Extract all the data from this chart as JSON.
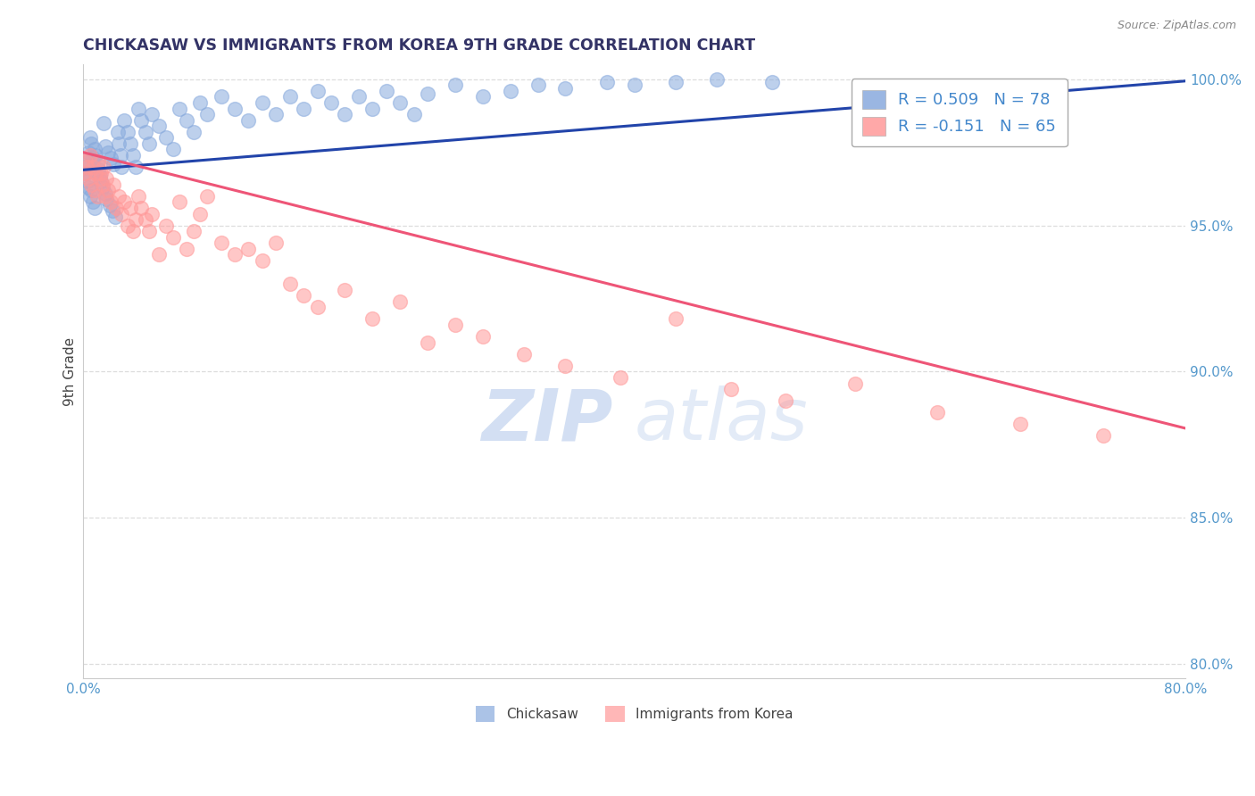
{
  "title": "CHICKASAW VS IMMIGRANTS FROM KOREA 9TH GRADE CORRELATION CHART",
  "source_text": "Source: ZipAtlas.com",
  "ylabel": "9th Grade",
  "xlim": [
    0.0,
    0.8
  ],
  "ylim": [
    0.795,
    1.005
  ],
  "xticks": [
    0.0,
    0.1,
    0.2,
    0.3,
    0.4,
    0.5,
    0.6,
    0.7,
    0.8
  ],
  "xticklabels": [
    "0.0%",
    "",
    "",
    "",
    "",
    "",
    "",
    "",
    "80.0%"
  ],
  "yticks": [
    0.8,
    0.85,
    0.9,
    0.95,
    1.0
  ],
  "yticklabels": [
    "80.0%",
    "85.0%",
    "90.0%",
    "95.0%",
    "100.0%"
  ],
  "legend1_R": "0.509",
  "legend1_N": "78",
  "legend2_R": "-0.151",
  "legend2_N": "65",
  "blue_color": "#88AADD",
  "pink_color": "#FF9999",
  "blue_line_color": "#2244AA",
  "pink_line_color": "#EE5577",
  "legend_text_color": "#4488CC",
  "title_color": "#333366",
  "tick_color": "#5599CC",
  "grid_color": "#DDDDDD",
  "blue_line_intercept": 0.969,
  "blue_line_slope": 0.038,
  "pink_line_intercept": 0.975,
  "pink_line_slope": -0.118,
  "chickasaw_x": [
    0.001,
    0.002,
    0.003,
    0.003,
    0.004,
    0.004,
    0.005,
    0.005,
    0.006,
    0.006,
    0.007,
    0.007,
    0.008,
    0.008,
    0.009,
    0.01,
    0.011,
    0.012,
    0.013,
    0.014,
    0.015,
    0.016,
    0.016,
    0.017,
    0.018,
    0.019,
    0.02,
    0.021,
    0.022,
    0.023,
    0.025,
    0.026,
    0.027,
    0.028,
    0.03,
    0.032,
    0.034,
    0.036,
    0.038,
    0.04,
    0.042,
    0.045,
    0.048,
    0.05,
    0.055,
    0.06,
    0.065,
    0.07,
    0.075,
    0.08,
    0.085,
    0.09,
    0.1,
    0.11,
    0.12,
    0.13,
    0.14,
    0.15,
    0.16,
    0.17,
    0.18,
    0.19,
    0.2,
    0.21,
    0.22,
    0.23,
    0.24,
    0.25,
    0.27,
    0.29,
    0.31,
    0.33,
    0.35,
    0.38,
    0.4,
    0.43,
    0.46,
    0.5
  ],
  "chickasaw_y": [
    0.97,
    0.968,
    0.972,
    0.965,
    0.975,
    0.963,
    0.98,
    0.96,
    0.978,
    0.962,
    0.973,
    0.958,
    0.976,
    0.956,
    0.974,
    0.971,
    0.969,
    0.967,
    0.965,
    0.963,
    0.985,
    0.961,
    0.977,
    0.959,
    0.975,
    0.957,
    0.973,
    0.955,
    0.971,
    0.953,
    0.982,
    0.978,
    0.974,
    0.97,
    0.986,
    0.982,
    0.978,
    0.974,
    0.97,
    0.99,
    0.986,
    0.982,
    0.978,
    0.988,
    0.984,
    0.98,
    0.976,
    0.99,
    0.986,
    0.982,
    0.992,
    0.988,
    0.994,
    0.99,
    0.986,
    0.992,
    0.988,
    0.994,
    0.99,
    0.996,
    0.992,
    0.988,
    0.994,
    0.99,
    0.996,
    0.992,
    0.988,
    0.995,
    0.998,
    0.994,
    0.996,
    0.998,
    0.997,
    0.999,
    0.998,
    0.999,
    1.0,
    0.999
  ],
  "korea_x": [
    0.001,
    0.002,
    0.003,
    0.004,
    0.005,
    0.006,
    0.007,
    0.008,
    0.009,
    0.01,
    0.011,
    0.012,
    0.013,
    0.014,
    0.015,
    0.016,
    0.017,
    0.018,
    0.02,
    0.022,
    0.024,
    0.026,
    0.028,
    0.03,
    0.032,
    0.034,
    0.036,
    0.038,
    0.04,
    0.042,
    0.045,
    0.048,
    0.05,
    0.055,
    0.06,
    0.065,
    0.07,
    0.075,
    0.08,
    0.085,
    0.09,
    0.1,
    0.11,
    0.12,
    0.13,
    0.14,
    0.15,
    0.16,
    0.17,
    0.19,
    0.21,
    0.23,
    0.25,
    0.27,
    0.29,
    0.32,
    0.35,
    0.39,
    0.43,
    0.47,
    0.51,
    0.56,
    0.62,
    0.68,
    0.74
  ],
  "korea_y": [
    0.968,
    0.972,
    0.97,
    0.966,
    0.974,
    0.964,
    0.97,
    0.962,
    0.968,
    0.96,
    0.972,
    0.966,
    0.968,
    0.964,
    0.97,
    0.96,
    0.966,
    0.962,
    0.958,
    0.964,
    0.956,
    0.96,
    0.954,
    0.958,
    0.95,
    0.956,
    0.948,
    0.952,
    0.96,
    0.956,
    0.952,
    0.948,
    0.954,
    0.94,
    0.95,
    0.946,
    0.958,
    0.942,
    0.948,
    0.954,
    0.96,
    0.944,
    0.94,
    0.942,
    0.938,
    0.944,
    0.93,
    0.926,
    0.922,
    0.928,
    0.918,
    0.924,
    0.91,
    0.916,
    0.912,
    0.906,
    0.902,
    0.898,
    0.918,
    0.894,
    0.89,
    0.896,
    0.886,
    0.882,
    0.878
  ]
}
